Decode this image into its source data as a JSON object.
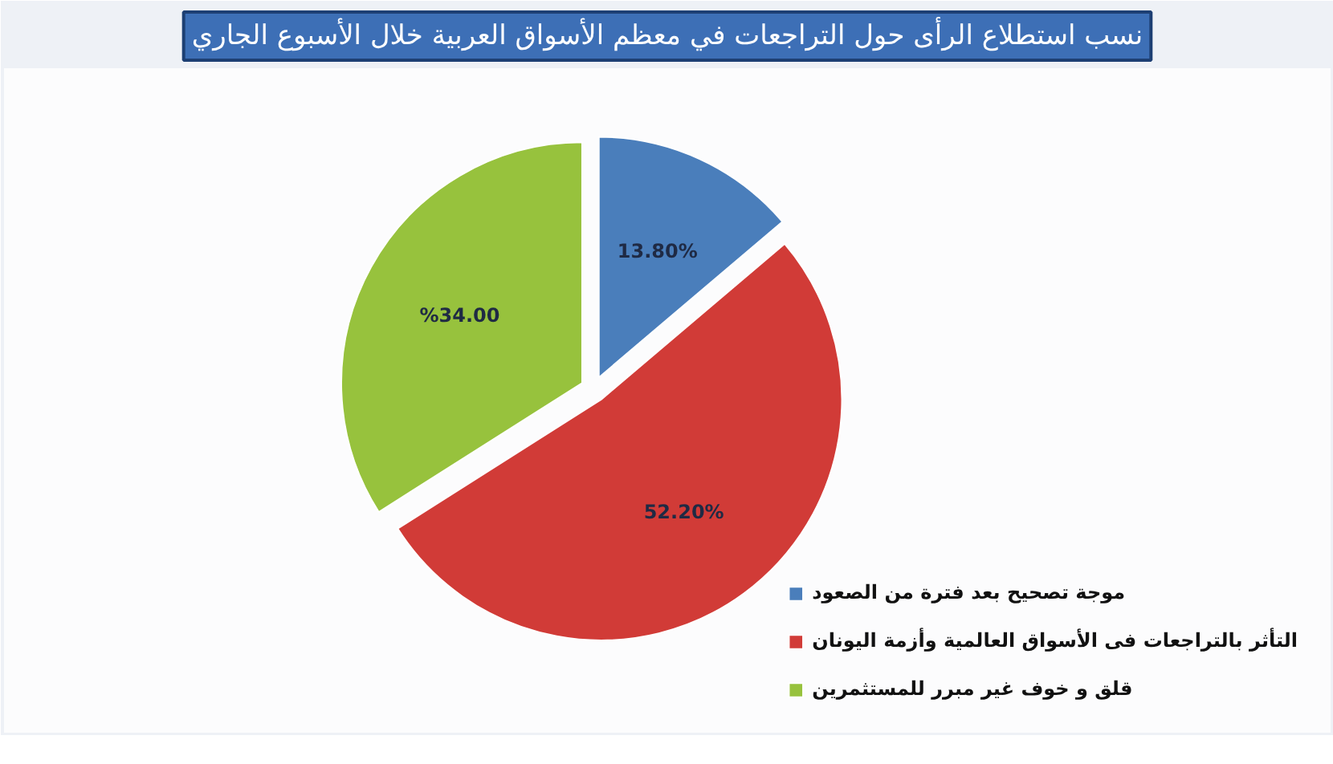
{
  "chart_data": {
    "type": "pie",
    "title": "نسب استطلاع الرأى حول التراجعات في معظم الأسواق العربية خلال الأسبوع الجاري",
    "categories": [
      "موجة تصحيح بعد فترة من الصعود",
      "التأثر بالتراجعات فى الأسواق العالمية وأزمة اليونان",
      "قلق و خوف غير مبرر للمستثمرين"
    ],
    "values": [
      13.8,
      52.2,
      34.0
    ],
    "colors": [
      "#4a7ebb",
      "#d13b37",
      "#97c23d"
    ],
    "value_labels": [
      "13.80%",
      "52.20%",
      "%34.00"
    ],
    "legend": "bottom right"
  }
}
